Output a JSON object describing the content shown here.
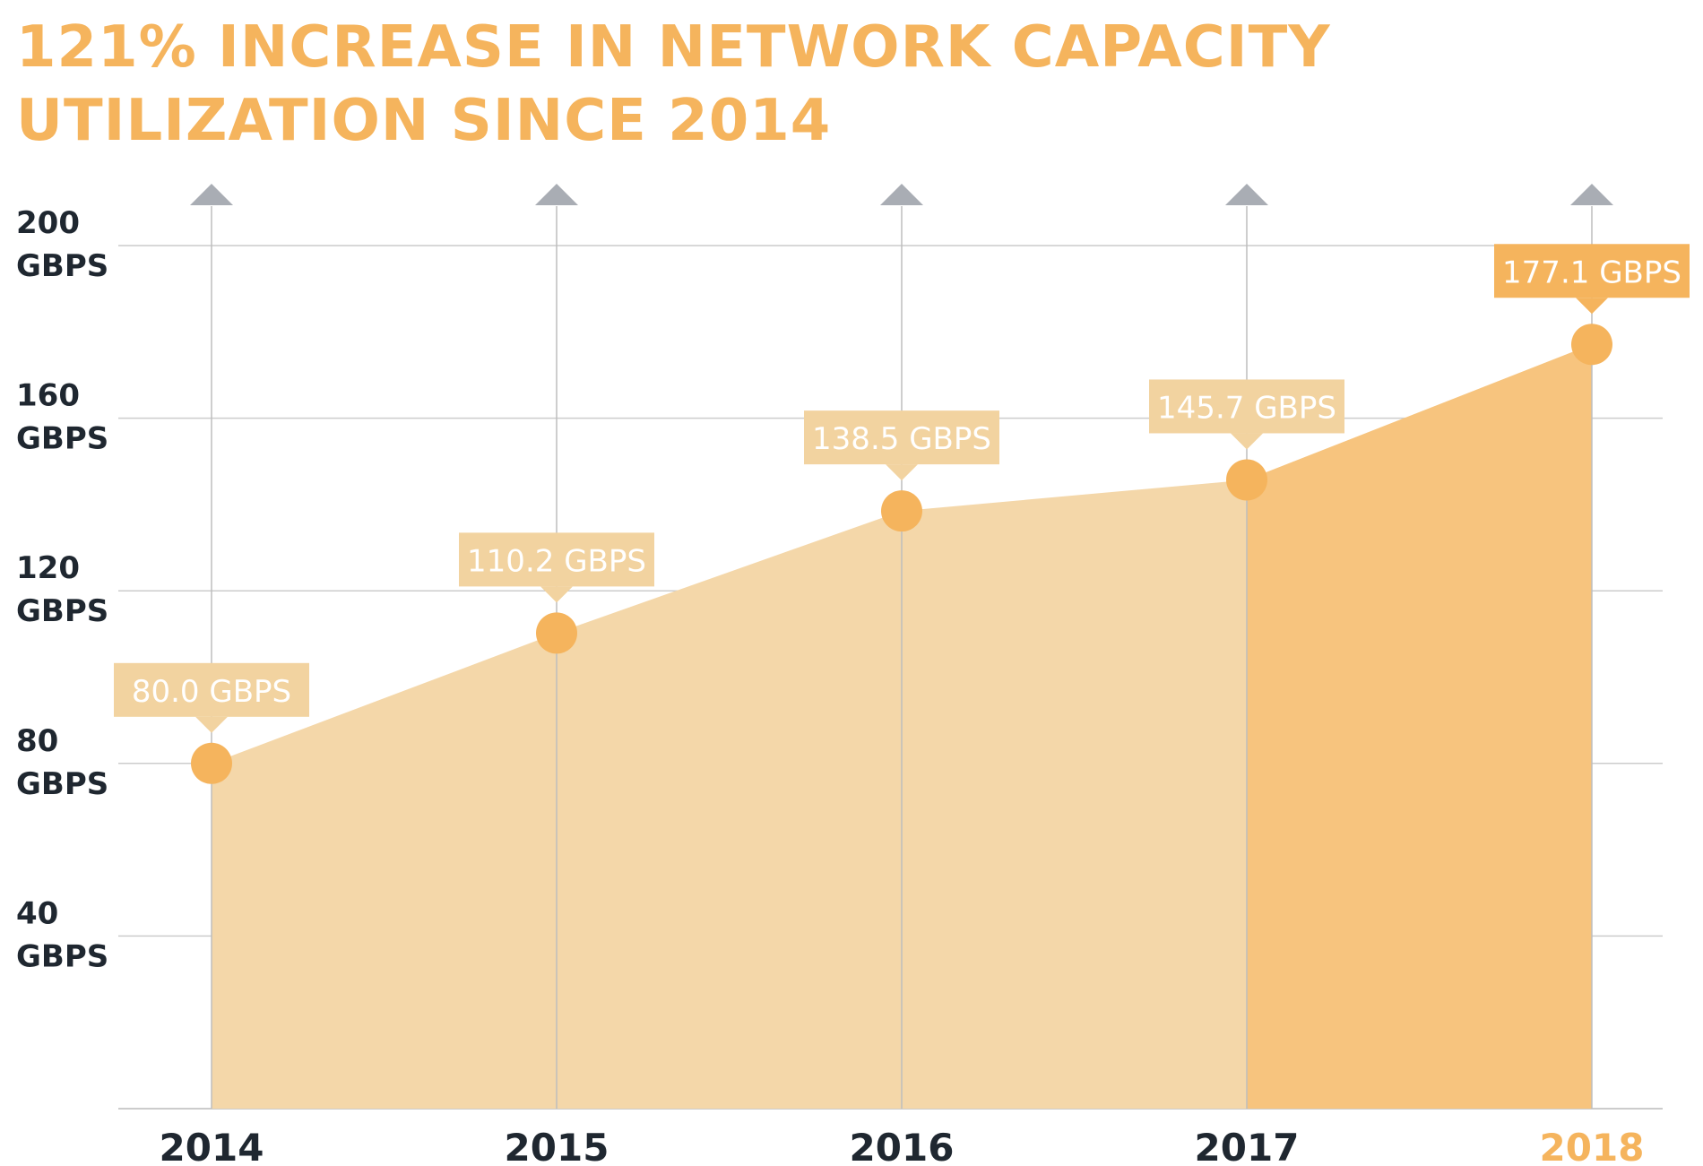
{
  "title": {
    "line1": "121% INCREASE IN NETWORK CAPACITY",
    "line2": "UTILIZATION SINCE 2014"
  },
  "colors": {
    "accent": "#f5b45d",
    "area_light": "#f4d7a9",
    "area_dark": "#f7c47e",
    "callout_light": "#f2d3a0",
    "callout_dark": "#f5b45d",
    "grid": "#cccccc",
    "text": "#1f2730"
  },
  "chart_data": {
    "type": "area",
    "categories": [
      "2014",
      "2015",
      "2016",
      "2017",
      "2018"
    ],
    "values": [
      80.0,
      110.2,
      138.5,
      145.7,
      177.1
    ],
    "data_labels": [
      "80.0 GBPS",
      "110.2 GBPS",
      "138.5 GBPS",
      "145.7 GBPS",
      "177.1 GBPS"
    ],
    "highlight_category": "2018",
    "ylim": [
      0,
      200
    ],
    "yticks": [
      {
        "value": 200,
        "line1": "200",
        "line2": "GBPS"
      },
      {
        "value": 160,
        "line1": "160",
        "line2": "GBPS"
      },
      {
        "value": 120,
        "line1": "120",
        "line2": "GBPS"
      },
      {
        "value": 80,
        "line1": "80",
        "line2": "GBPS"
      },
      {
        "value": 40,
        "line1": "40",
        "line2": "GBPS"
      }
    ],
    "grid": true
  }
}
